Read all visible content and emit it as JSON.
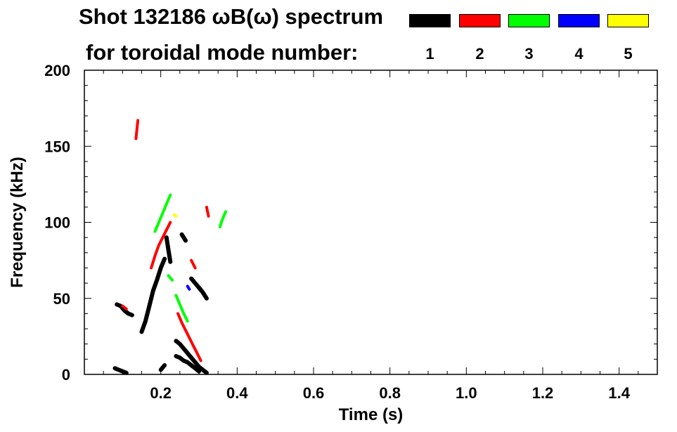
{
  "header": {
    "line1": "Shot 132186 ωB(ω) spectrum",
    "line2": "for toroidal mode number:"
  },
  "legend": [
    {
      "mode": "1",
      "color": "#000000"
    },
    {
      "mode": "2",
      "color": "#ff0000"
    },
    {
      "mode": "3",
      "color": "#00ff00"
    },
    {
      "mode": "4",
      "color": "#0000ff"
    },
    {
      "mode": "5",
      "color": "#ffff00"
    }
  ],
  "chart_data": {
    "type": "scatter",
    "title": "Shot 132186 ωB(ω) spectrum",
    "xlabel": "Time (s)",
    "ylabel": "Frequency (kHz)",
    "xlim": [
      0.0,
      1.5
    ],
    "ylim": [
      0,
      200
    ],
    "x_ticks": [
      0.2,
      0.4,
      0.6,
      0.8,
      1.0,
      1.2,
      1.4
    ],
    "x_tick_labels": [
      "0.2",
      "0.4",
      "0.6",
      "0.8",
      "1.0",
      "1.2",
      "1.4"
    ],
    "y_ticks": [
      0,
      50,
      100,
      150,
      200
    ],
    "y_tick_labels": [
      "0",
      "50",
      "100",
      "150",
      "200"
    ],
    "grid": false,
    "legend_placement": "top-right",
    "series": [
      {
        "name": "1",
        "color": "#000000",
        "segments": [
          {
            "x": [
              0.085,
              0.095,
              0.105,
              0.115,
              0.125
            ],
            "y": [
              46,
              45,
              42,
              40,
              39
            ]
          },
          {
            "x": [
              0.15,
              0.16,
              0.17,
              0.18,
              0.19,
              0.2,
              0.21
            ],
            "y": [
              28,
              35,
              45,
              55,
              62,
              70,
              76
            ]
          },
          {
            "x": [
              0.215,
              0.22,
              0.225
            ],
            "y": [
              90,
              82,
              74
            ]
          },
          {
            "x": [
              0.24,
              0.25,
              0.26,
              0.27,
              0.28,
              0.29,
              0.3,
              0.31,
              0.32
            ],
            "y": [
              22,
              20,
              17,
              14,
              11,
              8,
              5,
              3,
              1
            ]
          },
          {
            "x": [
              0.24,
              0.25,
              0.26,
              0.27,
              0.28,
              0.29,
              0.3
            ],
            "y": [
              12,
              11,
              9,
              8,
              6,
              4,
              2
            ]
          },
          {
            "x": [
              0.255,
              0.26,
              0.265
            ],
            "y": [
              92,
              90,
              88
            ]
          },
          {
            "x": [
              0.28,
              0.29,
              0.3,
              0.31,
              0.32
            ],
            "y": [
              63,
              60,
              57,
              54,
              50
            ]
          },
          {
            "x": [
              0.08,
              0.09,
              0.1,
              0.11
            ],
            "y": [
              4,
              3,
              2,
              1
            ]
          },
          {
            "x": [
              0.2,
              0.21
            ],
            "y": [
              3,
              6
            ]
          }
        ]
      },
      {
        "name": "2",
        "color": "#ff0000",
        "segments": [
          {
            "x": [
              0.135,
              0.14
            ],
            "y": [
              155,
              167
            ]
          },
          {
            "x": [
              0.175,
              0.185,
              0.195,
              0.205,
              0.215,
              0.225
            ],
            "y": [
              70,
              78,
              85,
              90,
              95,
              100
            ]
          },
          {
            "x": [
              0.245,
              0.255,
              0.265,
              0.275,
              0.285,
              0.295,
              0.305
            ],
            "y": [
              40,
              34,
              29,
              24,
              19,
              14,
              9
            ]
          },
          {
            "x": [
              0.28,
              0.29
            ],
            "y": [
              75,
              70
            ]
          },
          {
            "x": [
              0.1,
              0.11
            ],
            "y": [
              45,
              43
            ]
          },
          {
            "x": [
              0.32,
              0.325
            ],
            "y": [
              110,
              104
            ]
          }
        ]
      },
      {
        "name": "3",
        "color": "#00ff00",
        "segments": [
          {
            "x": [
              0.185,
              0.195,
              0.205,
              0.215,
              0.225
            ],
            "y": [
              94,
              100,
              106,
              112,
              118
            ]
          },
          {
            "x": [
              0.24,
              0.25,
              0.26,
              0.27
            ],
            "y": [
              52,
              46,
              40,
              35
            ]
          },
          {
            "x": [
              0.355,
              0.36,
              0.365,
              0.37
            ],
            "y": [
              97,
              101,
              104,
              107
            ]
          },
          {
            "x": [
              0.22,
              0.23
            ],
            "y": [
              65,
              62
            ]
          }
        ]
      },
      {
        "name": "4",
        "color": "#0000ff",
        "segments": [
          {
            "x": [
              0.27,
              0.275
            ],
            "y": [
              58,
              56
            ]
          }
        ]
      },
      {
        "name": "5",
        "color": "#ffff00",
        "segments": [
          {
            "x": [
              0.235,
              0.24
            ],
            "y": [
              105,
              104
            ]
          }
        ]
      }
    ]
  }
}
